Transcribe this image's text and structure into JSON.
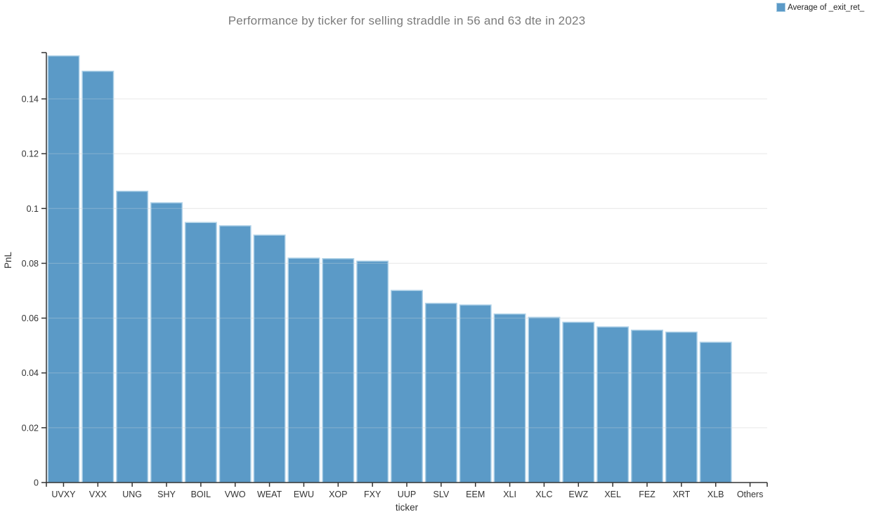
{
  "title": "Performance by ticker for selling straddle in 56 and 63 dte in 2023",
  "legend": {
    "label": "Average of _exit_ret_",
    "swatch_icon": "blue-square-icon",
    "position": "top-right"
  },
  "colors": {
    "bar_fill": "#5b9ac7",
    "bar_border": "#b0d2e8",
    "gridline": "#e7e7e7",
    "axis": "#333333",
    "tick_text": "#333333",
    "title_text": "#7b7b7b"
  },
  "chart_data": {
    "type": "bar",
    "title": "Performance by ticker for selling straddle in 56 and 63 dte in 2023",
    "xlabel": "ticker",
    "ylabel": "PnL",
    "categories": [
      "UVXY",
      "VXX",
      "UNG",
      "SHY",
      "BOIL",
      "VWO",
      "WEAT",
      "EWU",
      "XOP",
      "FXY",
      "UUP",
      "SLV",
      "EEM",
      "XLI",
      "XLC",
      "EWZ",
      "XEL",
      "FEZ",
      "XRT",
      "XLB",
      "Others"
    ],
    "values": [
      0.1557,
      0.1501,
      0.1063,
      0.1021,
      0.0949,
      0.0937,
      0.0903,
      0.0819,
      0.0817,
      0.0808,
      0.0701,
      0.0654,
      0.0648,
      0.0615,
      0.0603,
      0.0585,
      0.0568,
      0.0556,
      0.0549,
      0.0512,
      0.0
    ],
    "series": [
      {
        "name": "Average of _exit_ret_",
        "values": [
          0.1557,
          0.1501,
          0.1063,
          0.1021,
          0.0949,
          0.0937,
          0.0903,
          0.0819,
          0.0817,
          0.0808,
          0.0701,
          0.0654,
          0.0648,
          0.0615,
          0.0603,
          0.0585,
          0.0568,
          0.0556,
          0.0549,
          0.0512,
          0.0
        ]
      }
    ],
    "ylim": [
      0,
      0.157
    ],
    "yticks": [
      0,
      0.02,
      0.04,
      0.06,
      0.08,
      0.1,
      0.12,
      0.14
    ],
    "grid": true,
    "legend_position": "top-right"
  }
}
